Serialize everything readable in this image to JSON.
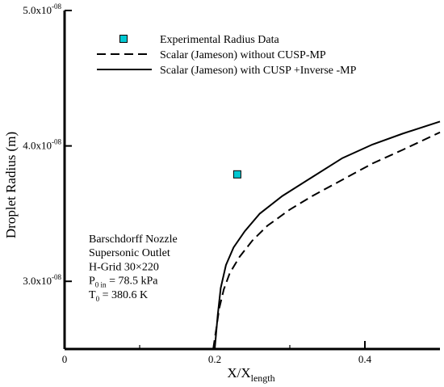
{
  "chart_data": {
    "type": "line",
    "xlabel": {
      "main": "X/X",
      "sub": "length"
    },
    "ylabel": "Droplet Radius (m)",
    "xlim": [
      0,
      0.5
    ],
    "ylim": [
      2.5e-08,
      5e-08
    ],
    "x_ticks": [
      {
        "value": 0,
        "label": "0"
      },
      {
        "value": 0.2,
        "label": "0.2"
      },
      {
        "value": 0.4,
        "label": "0.4"
      }
    ],
    "x_minor_ticks": [
      0.1,
      0.3
    ],
    "y_ticks": [
      {
        "value": 3e-08,
        "mantissa": "3.0x10",
        "exp": "-08"
      },
      {
        "value": 4e-08,
        "mantissa": "4.0x10",
        "exp": "-08"
      },
      {
        "value": 5e-08,
        "mantissa": "5.0x10",
        "exp": "-08"
      }
    ],
    "series": [
      {
        "name": "Experimental Radius Data",
        "kind": "marker",
        "color": "#00c8d2",
        "points": [
          [
            0.23,
            3.79e-08
          ]
        ]
      },
      {
        "name": "Scalar (Jameson) without CUSP-MP",
        "kind": "line",
        "dash": true,
        "color": "#000000",
        "points": [
          [
            0.198,
            2.5e-08
          ],
          [
            0.202,
            2.65e-08
          ],
          [
            0.206,
            2.8e-08
          ],
          [
            0.212,
            2.94e-08
          ],
          [
            0.22,
            3.06e-08
          ],
          [
            0.233,
            3.18e-08
          ],
          [
            0.25,
            3.3e-08
          ],
          [
            0.27,
            3.41e-08
          ],
          [
            0.3,
            3.53e-08
          ],
          [
            0.33,
            3.63e-08
          ],
          [
            0.37,
            3.75e-08
          ],
          [
            0.41,
            3.87e-08
          ],
          [
            0.45,
            3.97e-08
          ],
          [
            0.5,
            4.1e-08
          ]
        ]
      },
      {
        "name": "Scalar (Jameson) with CUSP +Inverse -MP",
        "kind": "line",
        "dash": false,
        "color": "#000000",
        "points": [
          [
            0.2,
            2.5e-08
          ],
          [
            0.204,
            2.75e-08
          ],
          [
            0.208,
            2.95e-08
          ],
          [
            0.215,
            3.12e-08
          ],
          [
            0.225,
            3.25e-08
          ],
          [
            0.24,
            3.37e-08
          ],
          [
            0.26,
            3.5e-08
          ],
          [
            0.29,
            3.63e-08
          ],
          [
            0.33,
            3.77e-08
          ],
          [
            0.37,
            3.91e-08
          ],
          [
            0.41,
            4.01e-08
          ],
          [
            0.45,
            4.09e-08
          ],
          [
            0.5,
            4.18e-08
          ]
        ]
      }
    ],
    "legend_position": "top-center",
    "annotation": {
      "lines": [
        {
          "text": "Barschdorff Nozzle"
        },
        {
          "text": "Supersonic Outlet"
        },
        {
          "text": "H-Grid 30×220"
        },
        {
          "pre": "P",
          "sub": "0 in",
          "post": " = 78.5 kPa"
        },
        {
          "pre": "T",
          "sub": "0",
          "post": " = 380.6 K"
        }
      ]
    }
  }
}
